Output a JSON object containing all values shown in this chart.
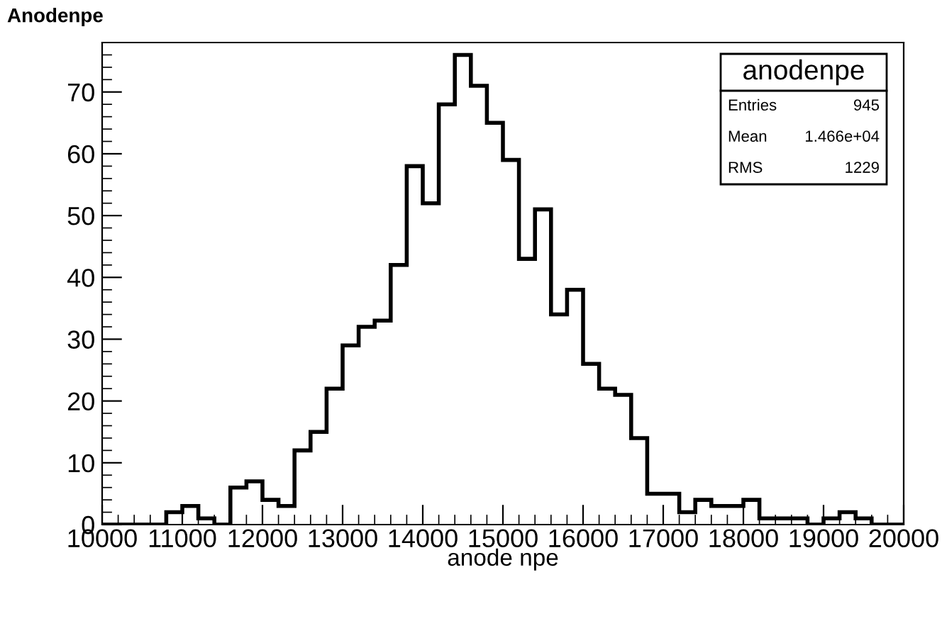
{
  "chart_data": {
    "type": "histogram",
    "title": "Anodenpe",
    "xlabel": "anode npe",
    "bins": [
      10000,
      10200,
      10400,
      10600,
      10800,
      11000,
      11200,
      11400,
      11600,
      11800,
      12000,
      12200,
      12400,
      12600,
      12800,
      13000,
      13200,
      13400,
      13600,
      13800,
      14000,
      14200,
      14400,
      14600,
      14800,
      15000,
      15200,
      15400,
      15600,
      15800,
      16000,
      16200,
      16400,
      16600,
      16800,
      17000,
      17200,
      17400,
      17600,
      17800,
      18000,
      18200,
      18400,
      18600,
      18800,
      19000,
      19200,
      19400,
      19600,
      19800,
      20000
    ],
    "values": [
      0,
      0,
      0,
      0,
      2,
      3,
      1,
      0,
      6,
      7,
      4,
      3,
      12,
      15,
      22,
      29,
      32,
      33,
      42,
      58,
      52,
      68,
      76,
      71,
      65,
      59,
      43,
      51,
      34,
      38,
      26,
      22,
      21,
      14,
      5,
      5,
      2,
      4,
      3,
      3,
      4,
      1,
      1,
      1,
      0,
      1,
      2,
      1,
      0,
      0
    ],
    "color": "#000000",
    "xlim": [
      10000,
      20000
    ],
    "xticks": [
      10000,
      11000,
      12000,
      13000,
      14000,
      15000,
      16000,
      17000,
      18000,
      19000,
      20000
    ],
    "ylim": [
      0,
      78
    ],
    "yticks": [
      0,
      10,
      20,
      30,
      40,
      50,
      60,
      70
    ],
    "grid": false,
    "annotations": [
      "anodenpe",
      "Entries",
      "945",
      "Mean",
      "1.466e+04",
      "RMS",
      "1229"
    ]
  }
}
